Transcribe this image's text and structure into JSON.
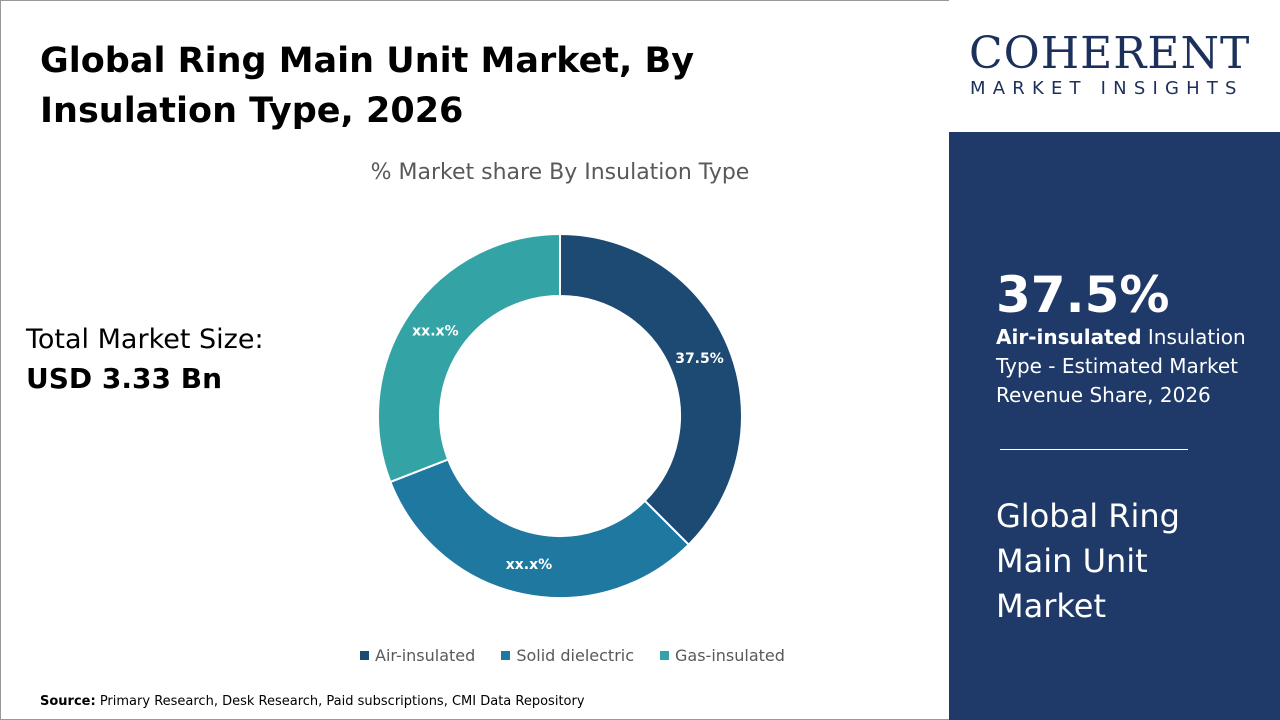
{
  "title": "Global Ring Main Unit Market, By Insulation Type, 2026",
  "total_market": {
    "label": "Total Market Size:",
    "value": "USD 3.33 Bn"
  },
  "source": {
    "label": "Source:",
    "text": " Primary Research, Desk Research, Paid subscriptions, CMI Data Repository"
  },
  "logo": {
    "name": "COHERENT",
    "tagline": "MARKET INSIGHTS"
  },
  "panel": {
    "highlight": "37.5%",
    "desc_bold": "Air-insulated",
    "desc_rest": " Insulation Type - Estimated Market Revenue Share, 2026",
    "market_name": "Global Ring Main Unit Market"
  },
  "chart_data": {
    "type": "donut",
    "title": "% Market share By Insulation Type",
    "categories": [
      "Air-insulated",
      "Solid dielectric",
      "Gas-insulated"
    ],
    "values": [
      37.5,
      31.6,
      30.9
    ],
    "data_labels": [
      "37.5%",
      "xx.x%",
      "xx.x%"
    ],
    "colors": [
      "#1c4a72",
      "#1f78a0",
      "#34a3a5"
    ],
    "legend_position": "bottom"
  }
}
